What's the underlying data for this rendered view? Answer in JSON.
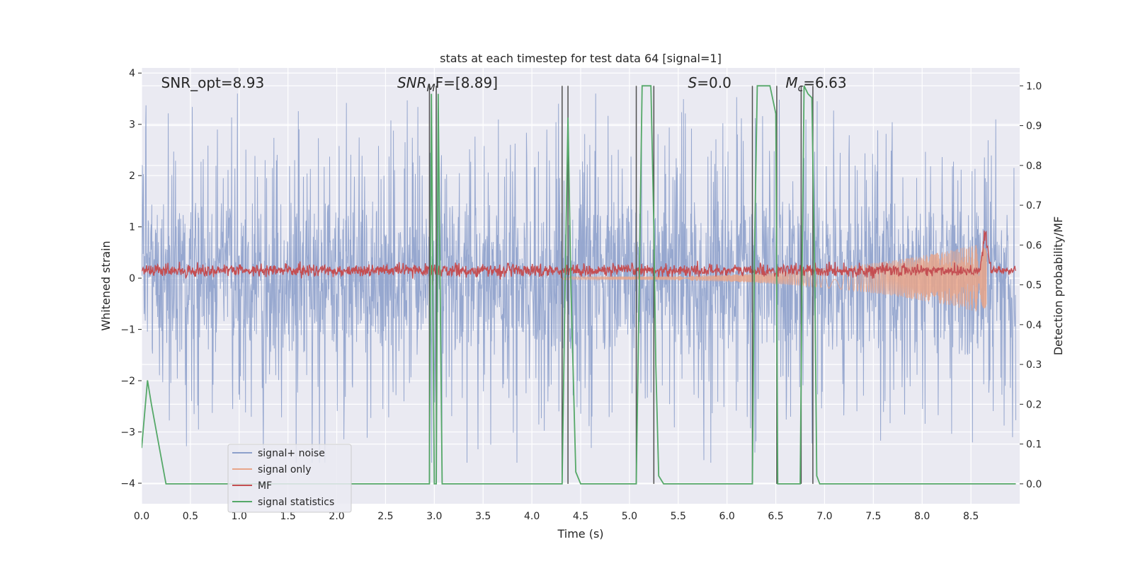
{
  "chart_data": {
    "type": "line",
    "title": "stats at each timestep for test data 64 [signal=1]",
    "xlabel": "Time (s)",
    "ylabel_left": "Whitened strain",
    "ylabel_right": "Detection probability/MF",
    "xlim": [
      0.0,
      9.0
    ],
    "ylim_left": [
      -4.4,
      4.1
    ],
    "ylim_right": [
      -0.05,
      1.045
    ],
    "xticks": [
      0.0,
      0.5,
      1.0,
      1.5,
      2.0,
      2.5,
      3.0,
      3.5,
      4.0,
      4.5,
      5.0,
      5.5,
      6.0,
      6.5,
      7.0,
      7.5,
      8.0,
      8.5
    ],
    "xtick_labels": [
      "0.0",
      "0.5",
      "1.0",
      "1.5",
      "2.0",
      "2.5",
      "3.0",
      "3.5",
      "4.0",
      "4.5",
      "5.0",
      "5.5",
      "6.0",
      "6.5",
      "7.0",
      "7.5",
      "8.0",
      "8.5"
    ],
    "yticks_left": [
      -4,
      -3,
      -2,
      -1,
      0,
      1,
      2,
      3,
      4
    ],
    "ytick_labels_left": [
      "−4",
      "−3",
      "−2",
      "−1",
      "0",
      "1",
      "2",
      "3",
      "4"
    ],
    "yticks_right": [
      0.0,
      0.1,
      0.2,
      0.3,
      0.4,
      0.5,
      0.6,
      0.7,
      0.8,
      0.9,
      1.0
    ],
    "ytick_labels_right": [
      "0.0",
      "0.1",
      "0.2",
      "0.3",
      "0.4",
      "0.5",
      "0.6",
      "0.7",
      "0.8",
      "0.9",
      "1.0"
    ],
    "grid": true,
    "legend_position": "lower-left",
    "annotations": [
      {
        "text": "SNR_opt=8.93",
        "x": 0.2
      },
      {
        "text": "SNR",
        "sub": "M",
        "rest": "F=[8.89]",
        "italic": true,
        "x": 2.62
      },
      {
        "text": "S",
        "rest": "=0.0",
        "italic": true,
        "x": 5.6
      },
      {
        "text": "M",
        "sub": "c",
        "rest": "=6.63",
        "italic": true,
        "x": 6.6
      }
    ],
    "series": [
      {
        "name": "signal+ noise",
        "color": "#8da0cb",
        "kind": "noise",
        "axis": "left",
        "range": [
          -3.6,
          3.6
        ],
        "typical": [
          -1.4,
          1.4
        ]
      },
      {
        "name": "signal only",
        "color": "#e8a58a",
        "kind": "chirp",
        "axis": "left",
        "start": 4.3,
        "end": 8.66,
        "amp_start": 0.03,
        "amp_end": 0.7
      },
      {
        "name": "MF",
        "color": "#c44e52",
        "kind": "mf",
        "axis": "left",
        "baseline": 0.15,
        "peak_x": 8.65,
        "peak_y": 1.0
      },
      {
        "name": "signal statistics",
        "color": "#55a868",
        "kind": "polyline",
        "axis": "right",
        "x": [
          0.0,
          0.06,
          0.1,
          0.25,
          2.95,
          2.97,
          3.0,
          3.02,
          3.04,
          3.08,
          3.1,
          4.31,
          4.34,
          4.37,
          4.4,
          4.45,
          4.5,
          5.07,
          5.1,
          5.13,
          5.22,
          5.25,
          5.27,
          5.3,
          5.35,
          6.26,
          6.28,
          6.31,
          6.35,
          6.44,
          6.5,
          6.52,
          6.75,
          6.77,
          6.79,
          6.83,
          6.87,
          6.9,
          6.92,
          6.95,
          7.0,
          8.96
        ],
        "y": [
          0.09,
          0.26,
          0.2,
          0.0,
          0.0,
          0.98,
          0.0,
          0.0,
          0.98,
          0.0,
          0.0,
          0.0,
          0.5,
          0.92,
          0.5,
          0.03,
          0.0,
          0.0,
          0.5,
          1.0,
          1.0,
          0.65,
          0.3,
          0.02,
          0.0,
          0.0,
          0.55,
          1.0,
          1.0,
          1.0,
          0.93,
          0.0,
          0.0,
          0.55,
          1.0,
          0.98,
          0.97,
          0.5,
          0.02,
          0.0,
          0.0,
          0.0
        ]
      }
    ],
    "vertical_lines": {
      "color": "#505050",
      "x": [
        2.95,
        3.02,
        4.31,
        4.37,
        5.07,
        5.25,
        6.26,
        6.51,
        6.76,
        6.88
      ]
    }
  }
}
